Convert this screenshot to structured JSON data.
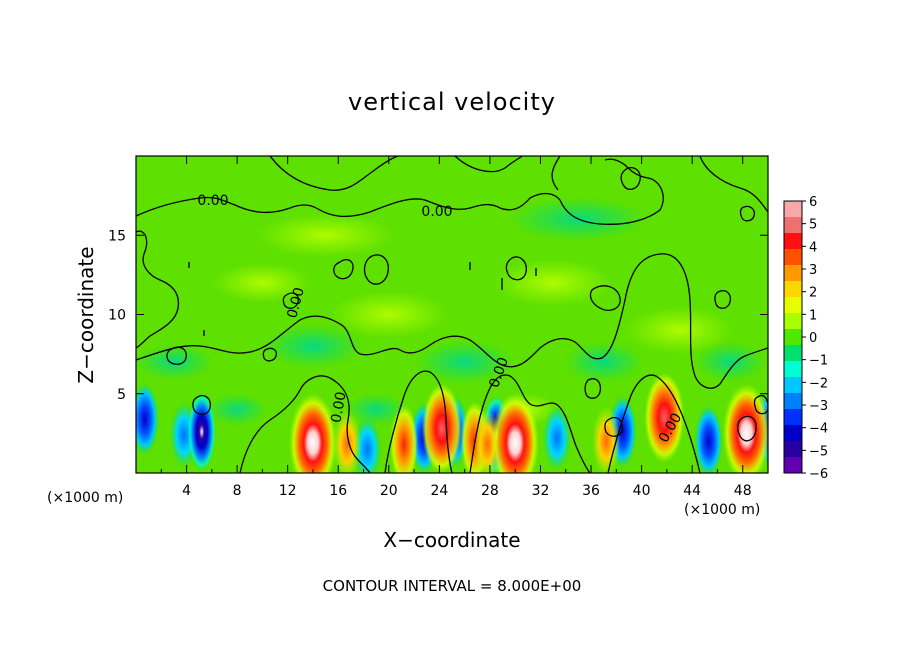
{
  "chart_data": {
    "type": "heatmap",
    "title": "vertical velocity",
    "xlabel": "X−coordinate",
    "ylabel": "Z−coordinate",
    "x_unit_label": "(×1000 m)",
    "x_unit_label_right": "(×1000 m)",
    "footer": "CONTOUR INTERVAL = 8.000E+00",
    "xlim": [
      0,
      50
    ],
    "ylim": [
      0,
      20
    ],
    "x_ticks": [
      "4",
      "8",
      "12",
      "16",
      "20",
      "24",
      "28",
      "32",
      "36",
      "40",
      "44",
      "48"
    ],
    "y_ticks": [
      "5",
      "10",
      "15"
    ],
    "colorbar": {
      "range": [
        -6,
        6
      ],
      "labels": [
        "6",
        "5",
        "4",
        "3",
        "2",
        "1",
        "0",
        "−1",
        "−2",
        "−3",
        "−4",
        "−5",
        "−6"
      ],
      "colors": [
        "#f8a8a8",
        "#f07070",
        "#ff1010",
        "#ff5000",
        "#ff9a00",
        "#ffd700",
        "#e6ff00",
        "#a8ff00",
        "#50e800",
        "#00e070",
        "#00ffd0",
        "#00c8ff",
        "#0080ff",
        "#0030ff",
        "#0000c8",
        "#2800a0",
        "#6000b0"
      ]
    },
    "contour_labels": [
      "0.00",
      "0.00",
      "0.00",
      "0.00",
      "0.00",
      "0.00"
    ],
    "updrafts": [
      {
        "x": 14.0,
        "z": 1.9,
        "peak": 6
      },
      {
        "x": 16.7,
        "z": 1.8,
        "peak": 3
      },
      {
        "x": 21.2,
        "z": 1.8,
        "peak": 4
      },
      {
        "x": 24.2,
        "z": 2.8,
        "peak": 5
      },
      {
        "x": 26.8,
        "z": 2.0,
        "peak": 4
      },
      {
        "x": 27.8,
        "z": 1.8,
        "peak": 3
      },
      {
        "x": 30.0,
        "z": 1.9,
        "peak": 6
      },
      {
        "x": 37.2,
        "z": 2.0,
        "peak": 3
      },
      {
        "x": 41.8,
        "z": 3.5,
        "peak": 5
      },
      {
        "x": 48.3,
        "z": 2.5,
        "peak": 6
      }
    ],
    "downdrafts": [
      {
        "x": 0.7,
        "z": 3.4,
        "peak": -4
      },
      {
        "x": 3.8,
        "z": 2.4,
        "peak": -3
      },
      {
        "x": 5.2,
        "z": 2.6,
        "peak": -5
      },
      {
        "x": 18.3,
        "z": 1.5,
        "peak": -3
      },
      {
        "x": 22.8,
        "z": 2.2,
        "peak": -4
      },
      {
        "x": 25.2,
        "z": 2.6,
        "peak": -4
      },
      {
        "x": 28.5,
        "z": 2.4,
        "peak": -5
      },
      {
        "x": 33.3,
        "z": 2.2,
        "peak": -3
      },
      {
        "x": 38.5,
        "z": 2.6,
        "peak": -4
      },
      {
        "x": 45.3,
        "z": 2.0,
        "peak": -4
      },
      {
        "x": 50.0,
        "z": 2.8,
        "peak": -4
      }
    ]
  }
}
